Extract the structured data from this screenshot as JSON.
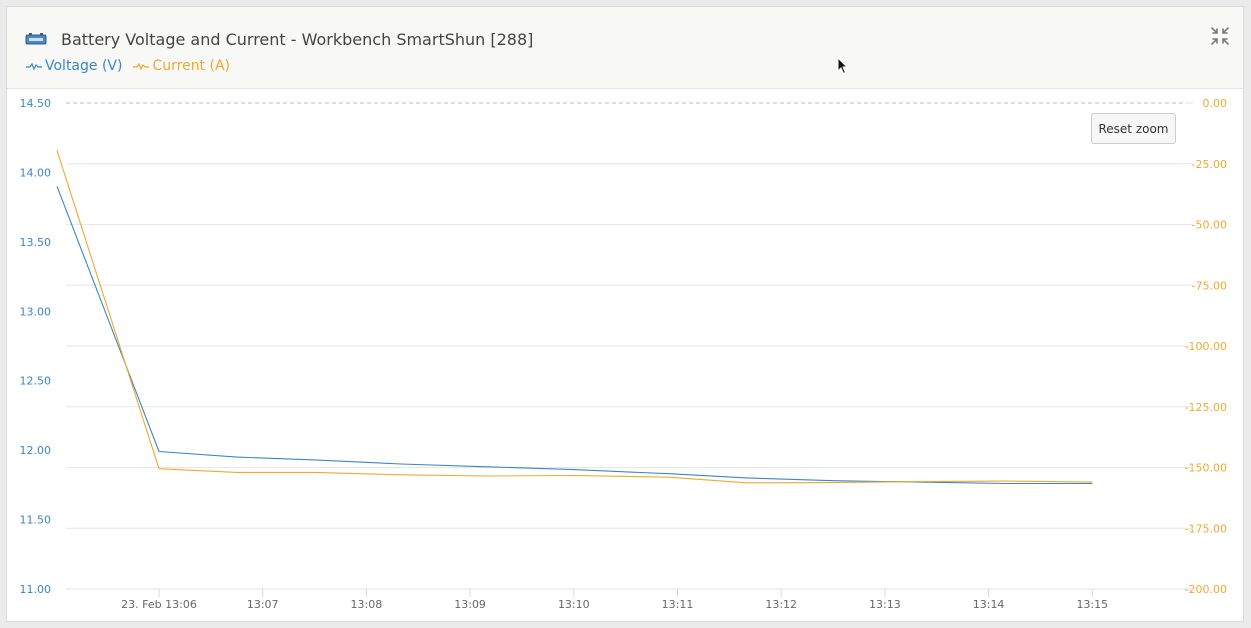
{
  "header": {
    "title": "Battery Voltage and Current - Workbench SmartShun [288]",
    "device_icon": "battery-shunt-icon",
    "collapse_icon": "collapse-arrows-icon",
    "legend": [
      {
        "label": "Voltage (V)",
        "color": "#3b86c6",
        "icon": "line-legend-icon"
      },
      {
        "label": "Current (A)",
        "color": "#f0a830",
        "icon": "line-legend-icon"
      }
    ]
  },
  "toolbar": {
    "reset_zoom_label": "Reset zoom"
  },
  "chart_data": {
    "type": "line",
    "x_tick_labels": [
      "23. Feb 13:06",
      "13:07",
      "13:08",
      "13:09",
      "13:10",
      "13:11",
      "13:12",
      "13:13",
      "13:14",
      "13:15"
    ],
    "x": [
      "13:05:01",
      "13:06:00",
      "13:06:45",
      "13:07:30",
      "13:08:20",
      "13:09:10",
      "13:10:00",
      "13:10:55",
      "13:11:40",
      "13:12:30",
      "13:13:20",
      "13:14:10",
      "13:15:00"
    ],
    "series": [
      {
        "name": "Voltage (V)",
        "axis": "left",
        "color": "#3b86c6",
        "values": [
          13.9,
          11.99,
          11.95,
          11.93,
          11.9,
          11.88,
          11.86,
          11.83,
          11.8,
          11.78,
          11.77,
          11.76,
          11.76
        ]
      },
      {
        "name": "Current (A)",
        "axis": "right",
        "color": "#f0a830",
        "values": [
          -19.5,
          -150.5,
          -152.0,
          -152.0,
          -153.0,
          -153.5,
          -153.3,
          -154.0,
          -156.3,
          -156.2,
          -155.8,
          -155.6,
          -156.0
        ]
      }
    ],
    "y_left": {
      "ticks": [
        "14.50",
        "14.00",
        "13.50",
        "13.00",
        "12.50",
        "12.00",
        "11.50",
        "11.00"
      ],
      "range": [
        11.0,
        14.5
      ],
      "color": "#3b86c6"
    },
    "y_right": {
      "ticks": [
        "0.00",
        "-25.00",
        "-50.00",
        "-75.00",
        "-100.00",
        "-125.00",
        "-150.00",
        "-175.00",
        "-200.00"
      ],
      "range": [
        -200,
        0
      ],
      "color": "#f0a830"
    },
    "grid": true
  }
}
